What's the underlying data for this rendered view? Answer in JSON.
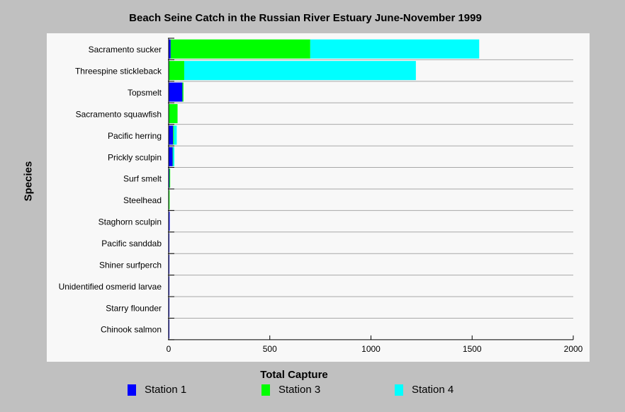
{
  "chart_data": {
    "type": "bar",
    "orientation": "horizontal",
    "stacked": true,
    "title": "Beach Seine Catch in the Russian River Estuary June-November 1999",
    "xlabel": "Total Capture",
    "ylabel": "Species",
    "xlim": [
      0,
      2000
    ],
    "xticks": [
      "0",
      "500",
      "1000",
      "1500",
      "2000"
    ],
    "categories": [
      "Sacramento sucker",
      "Threespine stickleback",
      "Topsmelt",
      "Sacramento squawfish",
      "Pacific herring",
      "Prickly sculpin",
      "Surf smelt",
      "Steelhead",
      "Staghorn sculpin",
      "Pacific sanddab",
      "Shiner surfperch",
      "Unidentified osmerid larvae",
      "Starry flounder",
      "Chinook salmon"
    ],
    "series": [
      {
        "name": "Station 1",
        "color": "#0000ff",
        "values": [
          10,
          2,
          68,
          2,
          22,
          20,
          4,
          1,
          5,
          1,
          1,
          1,
          1,
          1
        ]
      },
      {
        "name": "Station 3",
        "color": "#00ff00",
        "values": [
          690,
          75,
          5,
          42,
          4,
          2,
          3,
          3,
          0,
          0,
          0,
          0,
          0,
          0
        ]
      },
      {
        "name": "Station 4",
        "color": "#00ffff",
        "values": [
          835,
          1145,
          0,
          0,
          14,
          6,
          0,
          0,
          0,
          0,
          0,
          0,
          0,
          0
        ]
      }
    ],
    "grid": {
      "horizontal": true,
      "vertical": false
    },
    "legend_position": "bottom"
  }
}
